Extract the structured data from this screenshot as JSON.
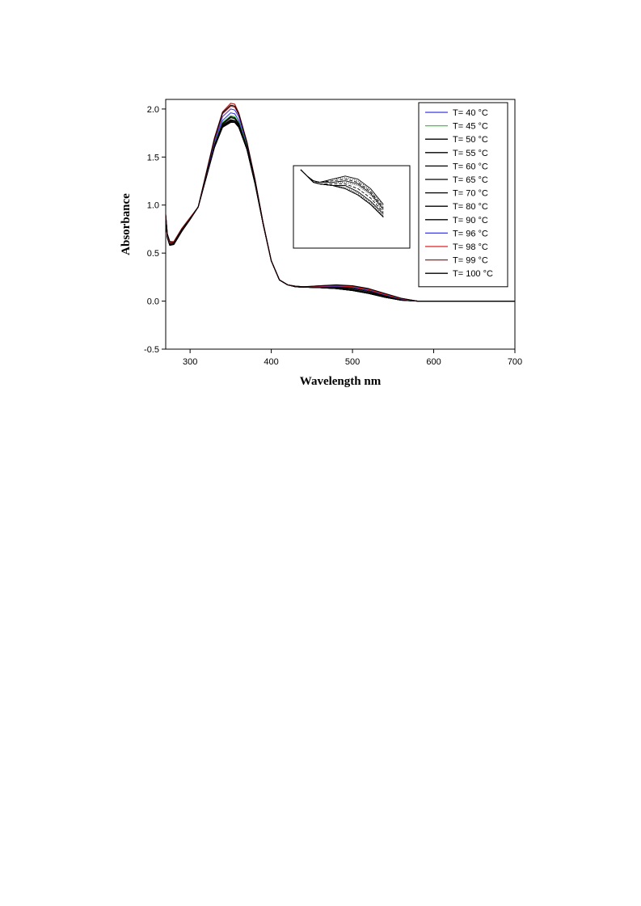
{
  "chart_data": {
    "type": "line",
    "title": "",
    "xlabel": "Wavelength nm",
    "ylabel": "Absorbance",
    "xlim": [
      270,
      700
    ],
    "ylim": [
      -0.5,
      2.1
    ],
    "x_ticks": [
      "300",
      "400",
      "500",
      "600",
      "700"
    ],
    "y_ticks": [
      "-0.5",
      "0.0",
      "0.5",
      "1.0",
      "1.5",
      "2.0"
    ],
    "grid": false,
    "legend_position": "top-right",
    "x": [
      270,
      272,
      275,
      280,
      290,
      300,
      310,
      320,
      330,
      340,
      350,
      355,
      360,
      370,
      380,
      390,
      400,
      410,
      420,
      430,
      440,
      460,
      480,
      500,
      520,
      540,
      560,
      580,
      600,
      650,
      700
    ],
    "series": [
      {
        "name": "T= 40 °C",
        "color": "#3a3adf",
        "values": [
          0.9,
          0.7,
          0.62,
          0.61,
          0.75,
          0.86,
          0.98,
          1.32,
          1.65,
          1.88,
          1.96,
          1.95,
          1.88,
          1.62,
          1.25,
          0.8,
          0.42,
          0.22,
          0.17,
          0.15,
          0.145,
          0.14,
          0.13,
          0.11,
          0.08,
          0.04,
          0.01,
          0.0,
          0.0,
          0.0,
          0.0
        ]
      },
      {
        "name": "T= 45 °C",
        "color": "#2bd42b",
        "values": [
          0.88,
          0.68,
          0.6,
          0.6,
          0.74,
          0.86,
          0.98,
          1.31,
          1.63,
          1.86,
          1.93,
          1.92,
          1.86,
          1.61,
          1.24,
          0.8,
          0.42,
          0.22,
          0.17,
          0.15,
          0.145,
          0.14,
          0.13,
          0.11,
          0.08,
          0.04,
          0.01,
          0.0,
          0.0,
          0.0,
          0.0
        ]
      },
      {
        "name": "T= 50 °C",
        "color": "#000000",
        "values": [
          0.88,
          0.68,
          0.6,
          0.6,
          0.74,
          0.86,
          0.98,
          1.3,
          1.62,
          1.84,
          1.91,
          1.9,
          1.84,
          1.6,
          1.24,
          0.8,
          0.42,
          0.22,
          0.17,
          0.15,
          0.145,
          0.14,
          0.13,
          0.11,
          0.08,
          0.04,
          0.01,
          0.0,
          0.0,
          0.0,
          0.0
        ]
      },
      {
        "name": "T= 55 °C",
        "color": "#000000",
        "values": [
          0.87,
          0.67,
          0.59,
          0.6,
          0.74,
          0.86,
          0.98,
          1.3,
          1.61,
          1.83,
          1.89,
          1.88,
          1.83,
          1.59,
          1.23,
          0.8,
          0.42,
          0.22,
          0.17,
          0.15,
          0.145,
          0.14,
          0.13,
          0.11,
          0.08,
          0.04,
          0.01,
          0.0,
          0.0,
          0.0,
          0.0
        ]
      },
      {
        "name": "T= 60 °C",
        "color": "#000000",
        "values": [
          0.87,
          0.67,
          0.59,
          0.59,
          0.73,
          0.85,
          0.98,
          1.29,
          1.6,
          1.82,
          1.88,
          1.87,
          1.82,
          1.58,
          1.23,
          0.8,
          0.42,
          0.22,
          0.17,
          0.15,
          0.145,
          0.14,
          0.13,
          0.11,
          0.08,
          0.04,
          0.01,
          0.0,
          0.0,
          0.0,
          0.0
        ]
      },
      {
        "name": "T= 65 °C",
        "color": "#000000",
        "values": [
          0.86,
          0.66,
          0.58,
          0.59,
          0.73,
          0.85,
          0.98,
          1.29,
          1.6,
          1.81,
          1.87,
          1.86,
          1.81,
          1.58,
          1.22,
          0.8,
          0.42,
          0.22,
          0.17,
          0.15,
          0.145,
          0.14,
          0.135,
          0.115,
          0.085,
          0.045,
          0.012,
          0.0,
          0.0,
          0.0,
          0.0
        ]
      },
      {
        "name": "T= 70 °C",
        "color": "#000000",
        "values": [
          0.86,
          0.66,
          0.58,
          0.59,
          0.73,
          0.85,
          0.98,
          1.29,
          1.6,
          1.81,
          1.86,
          1.86,
          1.81,
          1.58,
          1.22,
          0.8,
          0.42,
          0.22,
          0.17,
          0.15,
          0.145,
          0.14,
          0.14,
          0.12,
          0.09,
          0.05,
          0.015,
          0.0,
          0.0,
          0.0,
          0.0
        ]
      },
      {
        "name": "T= 80 °C",
        "color": "#000000",
        "values": [
          0.87,
          0.67,
          0.59,
          0.59,
          0.73,
          0.85,
          0.98,
          1.29,
          1.61,
          1.82,
          1.88,
          1.87,
          1.82,
          1.58,
          1.23,
          0.8,
          0.42,
          0.22,
          0.17,
          0.15,
          0.145,
          0.145,
          0.145,
          0.13,
          0.1,
          0.055,
          0.018,
          0.0,
          0.0,
          0.0,
          0.0
        ]
      },
      {
        "name": "T= 90 °C",
        "color": "#000000",
        "values": [
          0.88,
          0.68,
          0.6,
          0.6,
          0.74,
          0.86,
          0.98,
          1.3,
          1.62,
          1.85,
          1.92,
          1.91,
          1.85,
          1.6,
          1.24,
          0.8,
          0.42,
          0.22,
          0.17,
          0.15,
          0.15,
          0.15,
          0.15,
          0.14,
          0.11,
          0.06,
          0.02,
          0.0,
          0.0,
          0.0,
          0.0
        ]
      },
      {
        "name": "T= 96 °C",
        "color": "#3a3adf",
        "values": [
          0.89,
          0.69,
          0.61,
          0.61,
          0.75,
          0.86,
          0.98,
          1.32,
          1.66,
          1.92,
          2.0,
          1.99,
          1.92,
          1.64,
          1.26,
          0.81,
          0.42,
          0.22,
          0.17,
          0.155,
          0.15,
          0.15,
          0.155,
          0.145,
          0.115,
          0.065,
          0.022,
          0.0,
          0.0,
          0.0,
          0.0
        ]
      },
      {
        "name": "T= 98 °C",
        "color": "#e02020",
        "values": [
          0.89,
          0.69,
          0.61,
          0.61,
          0.75,
          0.86,
          0.98,
          1.33,
          1.68,
          1.95,
          2.03,
          2.02,
          1.94,
          1.65,
          1.26,
          0.81,
          0.42,
          0.22,
          0.17,
          0.155,
          0.15,
          0.155,
          0.16,
          0.15,
          0.12,
          0.07,
          0.025,
          0.0,
          0.0,
          0.0,
          0.0
        ]
      },
      {
        "name": "T= 99 °C",
        "color": "#b01818",
        "values": [
          0.9,
          0.7,
          0.62,
          0.62,
          0.76,
          0.87,
          0.98,
          1.34,
          1.7,
          1.97,
          2.06,
          2.05,
          1.96,
          1.66,
          1.27,
          0.81,
          0.42,
          0.22,
          0.17,
          0.155,
          0.15,
          0.16,
          0.165,
          0.155,
          0.125,
          0.075,
          0.028,
          0.0,
          0.0,
          0.0,
          0.0
        ]
      },
      {
        "name": "T= 100 °C",
        "color": "#000000",
        "values": [
          0.9,
          0.7,
          0.62,
          0.61,
          0.75,
          0.86,
          0.98,
          1.33,
          1.69,
          1.96,
          2.04,
          2.03,
          1.95,
          1.65,
          1.26,
          0.81,
          0.42,
          0.22,
          0.17,
          0.155,
          0.15,
          0.16,
          0.17,
          0.16,
          0.13,
          0.08,
          0.03,
          0.0,
          0.0,
          0.0,
          0.0
        ]
      }
    ]
  }
}
